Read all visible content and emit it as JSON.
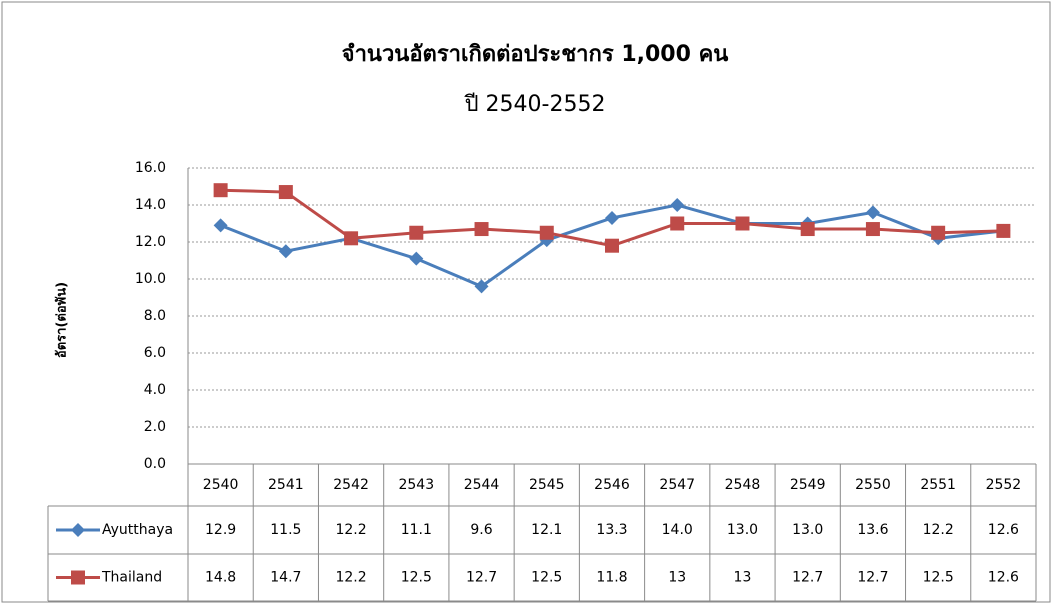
{
  "chart_data": {
    "type": "line",
    "title": "จำนวนอัตราเกิดต่อประชากร 1,000 คน",
    "subtitle": "ปี 2540-2552",
    "y_label": "อัตรา(ต่อพัน)",
    "categories": [
      "2540",
      "2541",
      "2542",
      "2543",
      "2544",
      "2545",
      "2546",
      "2547",
      "2548",
      "2549",
      "2550",
      "2551",
      "2552"
    ],
    "series": [
      {
        "name": "Ayutthaya",
        "color": "#4a7ebb",
        "marker": "diamond",
        "values": [
          12.9,
          11.5,
          12.2,
          11.1,
          9.6,
          12.1,
          13.3,
          14.0,
          13.0,
          13.0,
          13.6,
          12.2,
          12.6
        ],
        "value_labels": [
          "12.9",
          "11.5",
          "12.2",
          "11.1",
          "9.6",
          "12.1",
          "13.3",
          "14.0",
          "13.0",
          "13.0",
          "13.6",
          "12.2",
          "12.6"
        ]
      },
      {
        "name": "Thailand",
        "color": "#be4b48",
        "marker": "square",
        "values": [
          14.8,
          14.7,
          12.2,
          12.5,
          12.7,
          12.5,
          11.8,
          13,
          13,
          12.7,
          12.7,
          12.5,
          12.6
        ],
        "value_labels": [
          "14.8",
          "14.7",
          "12.2",
          "12.5",
          "12.7",
          "12.5",
          "11.8",
          "13",
          "13",
          "12.7",
          "12.7",
          "12.5",
          "12.6"
        ]
      }
    ],
    "ylim": [
      0,
      16
    ],
    "yticks": [
      {
        "value": 0,
        "label": "0.0"
      },
      {
        "value": 2,
        "label": "2.0"
      },
      {
        "value": 4,
        "label": "4.0"
      },
      {
        "value": 6,
        "label": "6.0"
      },
      {
        "value": 8,
        "label": "8.0"
      },
      {
        "value": 10,
        "label": "10.0"
      },
      {
        "value": 12,
        "label": "12.0"
      },
      {
        "value": 14,
        "label": "14.0"
      },
      {
        "value": 16,
        "label": "16.0"
      }
    ],
    "grid": true
  }
}
